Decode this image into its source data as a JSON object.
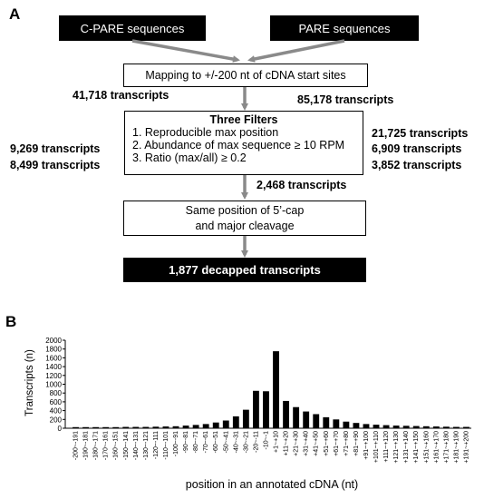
{
  "panel_a": {
    "letter": "A",
    "source_left": "C-PARE sequences",
    "source_right": "PARE sequences",
    "mapping": "Mapping to +/-200 nt of cDNA start sites",
    "left_mapped": "41,718 transcripts",
    "right_mapped": "85,178 transcripts",
    "filters_title": "Three Filters",
    "filter_1": "1. Reproducible max position",
    "filter_2": "2. Abundance of max sequence ≥ 10 RPM",
    "filter_3": "3. Ratio (max/all)  ≥ 0.2",
    "left_counts": [
      "9,269 transcripts",
      "8,499 transcripts"
    ],
    "right_counts": [
      "21,725 transcripts",
      "6,909 transcripts",
      "3,852 transcripts"
    ],
    "after_filters": "2,468 transcripts",
    "same_position_line1": "Same position of 5’-cap",
    "same_position_line2": "and major cleavage",
    "final": "1,877 decapped transcripts"
  },
  "panel_b": {
    "letter": "B"
  },
  "chart_data": {
    "type": "bar",
    "title": "",
    "xlabel": "position in an annotated cDNA (nt)",
    "ylabel": "Transcripts (n)",
    "ylim": [
      0,
      2000
    ],
    "yticks": [
      0,
      200,
      400,
      600,
      800,
      1000,
      1200,
      1400,
      1600,
      1800,
      2000
    ],
    "grid": false,
    "categories": [
      "-200~-191",
      "-190~-181",
      "-180~-171",
      "-170~-161",
      "-160~-151",
      "-150~-141",
      "-140~-131",
      "-130~-121",
      "-120~-111",
      "-110~-101",
      "-100~-91",
      "-90~-81",
      "-80~-71",
      "-70~-61",
      "-60~-51",
      "-50~-41",
      "-40~-31",
      "-30~-21",
      "-20~-11",
      "-10~-1",
      "+1~+10",
      "+11~+20",
      "+21~+30",
      "+31~+40",
      "+41~+50",
      "+51~+60",
      "+61~+70",
      "+71~+80",
      "+81~+90",
      "+91~+100",
      "+101~+110",
      "+111~+120",
      "+121~+130",
      "+131~+140",
      "+141~+150",
      "+151~+160",
      "+161~+170",
      "+171~+180",
      "+181~+190",
      "+191~+200"
    ],
    "tick_labels": [
      "-200~-191",
      "-190~-181",
      "-180~-171",
      "-170~-161",
      "-160~-151",
      "-150~-141",
      "-140~-131",
      "-130~-121",
      "-120~-111",
      "-110~-101",
      "-100~-91",
      "-90~-81",
      "-80~-71",
      "-70~-61",
      "-60~-51",
      "-50~-41",
      "-40~-31",
      "-30~-21",
      "-20~-11",
      "-10~-1",
      "+1~+10",
      "+11~+20",
      "+21~+30",
      "+31~+40",
      "+41~+50",
      "+51~+60",
      "+61~+70",
      "+71~+80",
      "+81~+90",
      "+91~+100",
      "+101~+110",
      "+111~+120",
      "+121~+130",
      "+131~+140",
      "+141~+150",
      "+151~+160",
      "+161~+170",
      "+171~+180",
      "+181~+190",
      "+191~+200"
    ],
    "values": [
      25,
      25,
      25,
      25,
      25,
      30,
      30,
      30,
      35,
      40,
      45,
      60,
      75,
      95,
      130,
      175,
      270,
      420,
      850,
      840,
      1750,
      620,
      480,
      380,
      320,
      250,
      200,
      150,
      120,
      95,
      80,
      70,
      60,
      55,
      50,
      45,
      40,
      35,
      30,
      30
    ],
    "bar_color": "#000000"
  }
}
